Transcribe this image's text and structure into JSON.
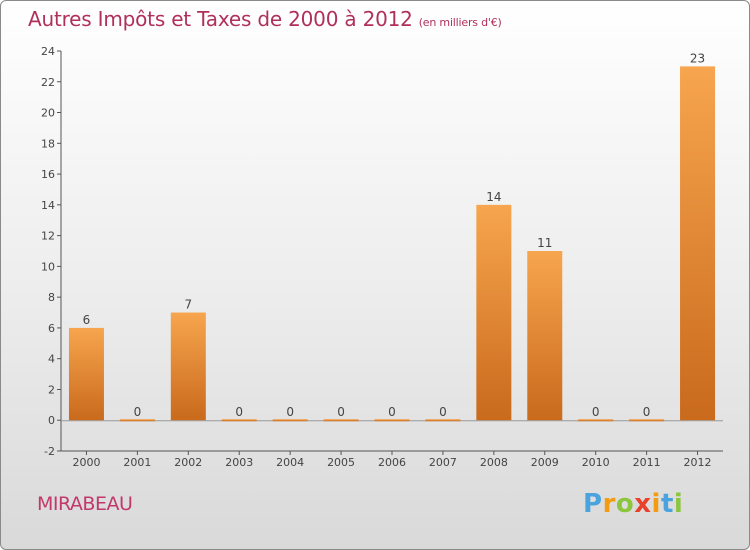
{
  "header": {
    "title": "Autres Impôts et Taxes de 2000 à 2012",
    "unit": "(en milliers d'€)"
  },
  "commune": "MIRABEAU",
  "brand": {
    "letters": [
      "P",
      "r",
      "o",
      "x",
      "i",
      "t",
      "i"
    ],
    "colors": [
      "#4aa3df",
      "#f39c12",
      "#8cc63f",
      "#e8412c",
      "#f39c12",
      "#4aa3df",
      "#8cc63f"
    ]
  },
  "chart_data": {
    "type": "bar",
    "title": "Autres Impôts et Taxes de 2000 à 2012",
    "subtitle": "(en milliers d'€)",
    "xlabel": "",
    "ylabel": "",
    "categories": [
      "2000",
      "2001",
      "2002",
      "2003",
      "2004",
      "2005",
      "2006",
      "2007",
      "2008",
      "2009",
      "2010",
      "2011",
      "2012"
    ],
    "values": [
      6,
      0,
      7,
      0,
      0,
      0,
      0,
      0,
      14,
      11,
      0,
      0,
      23
    ],
    "ylim": [
      -2,
      24
    ],
    "yticks": [
      -2,
      0,
      2,
      4,
      6,
      8,
      10,
      12,
      14,
      16,
      18,
      20,
      22,
      24
    ],
    "grid": false,
    "bar_color_light": "#f7a54e",
    "bar_color_dark": "#c96a1c",
    "axis_color": "#555555",
    "label_color": "#444444"
  }
}
